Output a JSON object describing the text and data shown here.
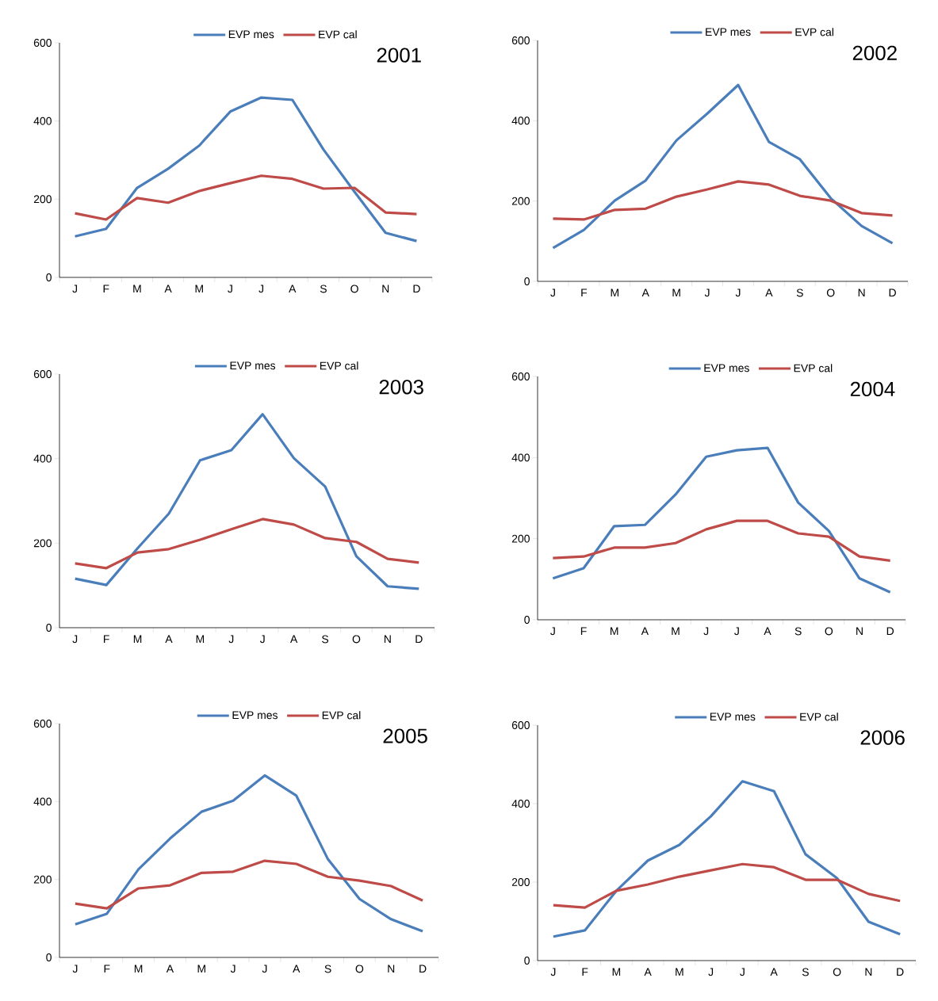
{
  "chart_data": [
    {
      "type": "line",
      "title": "2001",
      "categories": [
        "J",
        "F",
        "M",
        "A",
        "M",
        "J",
        "J",
        "A",
        "S",
        "O",
        "N",
        "D"
      ],
      "ylim": [
        0,
        600
      ],
      "yticks": [
        0,
        200,
        400,
        600
      ],
      "legend": "top",
      "marker": "none",
      "line_style": "solid",
      "series": [
        {
          "name": "EVP mes",
          "color": "#4a7ebb",
          "values": [
            105,
            124,
            229,
            278,
            337,
            424,
            460,
            454,
            327,
            219,
            114,
            93
          ]
        },
        {
          "name": "EVP cal",
          "color": "#be4b48",
          "values": [
            164,
            148,
            203,
            191,
            221,
            241,
            260,
            252,
            227,
            229,
            166,
            162
          ]
        }
      ]
    },
    {
      "type": "line",
      "title": "2002",
      "categories": [
        "J",
        "F",
        "M",
        "A",
        "M",
        "J",
        "J",
        "A",
        "S",
        "O",
        "N",
        "D"
      ],
      "ylim": [
        0,
        600
      ],
      "yticks": [
        0,
        200,
        400,
        600
      ],
      "legend": "top",
      "marker": "none",
      "line_style": "solid",
      "series": [
        {
          "name": "EVP mes",
          "color": "#4a7ebb",
          "values": [
            83,
            128,
            201,
            251,
            351,
            418,
            489,
            347,
            304,
            207,
            138,
            95
          ]
        },
        {
          "name": "EVP cal",
          "color": "#be4b48",
          "values": [
            156,
            154,
            178,
            181,
            211,
            229,
            249,
            241,
            213,
            201,
            170,
            164
          ]
        }
      ]
    },
    {
      "type": "line",
      "title": "2003",
      "categories": [
        "J",
        "F",
        "M",
        "A",
        "M",
        "J",
        "J",
        "A",
        "S",
        "O",
        "N",
        "D"
      ],
      "ylim": [
        0,
        600
      ],
      "yticks": [
        0,
        200,
        400,
        600
      ],
      "legend": "top",
      "marker": "none",
      "line_style": "solid",
      "series": [
        {
          "name": "EVP mes",
          "color": "#4a7ebb",
          "values": [
            116,
            101,
            188,
            270,
            396,
            420,
            505,
            401,
            334,
            169,
            98,
            92
          ]
        },
        {
          "name": "EVP cal",
          "color": "#be4b48",
          "values": [
            152,
            141,
            178,
            186,
            208,
            233,
            257,
            244,
            212,
            203,
            163,
            154
          ]
        }
      ]
    },
    {
      "type": "line",
      "title": "2004",
      "categories": [
        "J",
        "F",
        "M",
        "A",
        "M",
        "J",
        "J",
        "A",
        "S",
        "O",
        "N",
        "D"
      ],
      "ylim": [
        0,
        600
      ],
      "yticks": [
        0,
        200,
        400,
        600
      ],
      "legend": "top",
      "marker": "none",
      "line_style": "solid",
      "series": [
        {
          "name": "EVP mes",
          "color": "#4a7ebb",
          "values": [
            102,
            127,
            231,
            234,
            309,
            402,
            418,
            424,
            289,
            219,
            102,
            68
          ]
        },
        {
          "name": "EVP cal",
          "color": "#be4b48",
          "values": [
            152,
            156,
            178,
            178,
            189,
            223,
            244,
            244,
            213,
            205,
            156,
            146
          ]
        }
      ]
    },
    {
      "type": "line",
      "title": "2005",
      "categories": [
        "J",
        "F",
        "M",
        "A",
        "M",
        "J",
        "J",
        "A",
        "S",
        "O",
        "N",
        "D"
      ],
      "ylim": [
        0,
        600
      ],
      "yticks": [
        0,
        200,
        400,
        600
      ],
      "legend": "top",
      "marker": "none",
      "line_style": "solid",
      "series": [
        {
          "name": "EVP mes",
          "color": "#4a7ebb",
          "values": [
            85,
            112,
            226,
            305,
            374,
            402,
            467,
            415,
            252,
            150,
            98,
            67
          ]
        },
        {
          "name": "EVP cal",
          "color": "#be4b48",
          "values": [
            138,
            126,
            177,
            185,
            217,
            220,
            248,
            240,
            207,
            197,
            183,
            146
          ]
        }
      ]
    },
    {
      "type": "line",
      "title": "2006",
      "categories": [
        "J",
        "F",
        "M",
        "A",
        "M",
        "J",
        "J",
        "A",
        "S",
        "O",
        "N",
        "D"
      ],
      "ylim": [
        0,
        600
      ],
      "yticks": [
        0,
        200,
        400,
        600
      ],
      "legend": "top",
      "marker": "none",
      "line_style": "solid",
      "series": [
        {
          "name": "EVP mes",
          "color": "#4a7ebb",
          "values": [
            61,
            77,
            178,
            255,
            295,
            368,
            457,
            432,
            271,
            210,
            99,
            67
          ]
        },
        {
          "name": "EVP cal",
          "color": "#be4b48",
          "values": [
            141,
            135,
            178,
            194,
            214,
            230,
            246,
            238,
            206,
            206,
            170,
            152
          ]
        }
      ]
    }
  ]
}
